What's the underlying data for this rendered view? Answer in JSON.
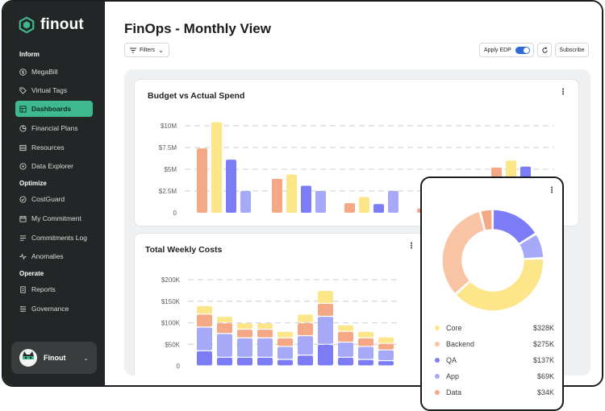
{
  "app": {
    "name": "finout"
  },
  "sidebar": {
    "sections": [
      {
        "label": "Inform",
        "items": [
          {
            "label": "MegaBill",
            "icon": "dollar-icon"
          },
          {
            "label": "Virtual Tags",
            "icon": "tag-icon"
          },
          {
            "label": "Dashboards",
            "icon": "dashboard-icon",
            "active": true
          },
          {
            "label": "Financial Plans",
            "icon": "pie-icon"
          },
          {
            "label": "Resources",
            "icon": "list-icon"
          },
          {
            "label": "Data Explorer",
            "icon": "explore-icon"
          }
        ]
      },
      {
        "label": "Optimize",
        "items": [
          {
            "label": "CostGuard",
            "icon": "check-circle-icon"
          },
          {
            "label": "My Commitment",
            "icon": "calendar-icon"
          },
          {
            "label": "Commitments Log",
            "icon": "log-icon"
          },
          {
            "label": "Anomalies",
            "icon": "pulse-icon"
          }
        ]
      },
      {
        "label": "Operate",
        "items": [
          {
            "label": "Reports",
            "icon": "report-icon"
          },
          {
            "label": "Governance",
            "icon": "governance-icon"
          }
        ]
      }
    ],
    "user": {
      "name": "Finout"
    }
  },
  "header": {
    "title": "FinOps - Monthly View",
    "filters_label": "Filters",
    "apply_edp_label": "Apply EDP",
    "apply_edp_on": true,
    "subscribe_label": "Subscribe"
  },
  "colors": {
    "core": "#fde68a",
    "backend": "#f9c4a4",
    "qa": "#7b7cf6",
    "app": "#a5a9f8",
    "data": "#f4a886",
    "accent": "#3db88f"
  },
  "chart_data": [
    {
      "type": "bar",
      "title": "Budget vs Actual Spend",
      "y_ticks": [
        "$10M",
        "$7.5M",
        "$5M",
        "$2.5M",
        "0"
      ],
      "ylim": [
        0,
        10
      ],
      "groups": [
        {
          "values": [
            7.4,
            10.4,
            6.1,
            2.5
          ],
          "colors": [
            "#f4a886",
            "#fde68a",
            "#7b7cf6",
            "#a5a9f8"
          ]
        },
        {
          "values": [
            3.9,
            4.4,
            3.1,
            2.5
          ],
          "colors": [
            "#f4a886",
            "#fde68a",
            "#7b7cf6",
            "#a5a9f8"
          ]
        },
        {
          "values": [
            1.1,
            1.8,
            1.0,
            2.5
          ],
          "colors": [
            "#f4a886",
            "#fde68a",
            "#7b7cf6",
            "#a5a9f8"
          ]
        },
        {
          "values": [
            0.5,
            0,
            0,
            0
          ],
          "colors": [
            "#f4a886",
            "#fde68a",
            "#7b7cf6",
            "#a5a9f8"
          ]
        },
        {
          "values": [
            5.2,
            6.0,
            5.3,
            2.5
          ],
          "colors": [
            "#f4a886",
            "#fde68a",
            "#7b7cf6",
            "#a5a9f8"
          ]
        }
      ]
    },
    {
      "type": "bar",
      "title": "Total Weekly Costs",
      "stacked": true,
      "y_ticks": [
        "$200K",
        "$150K",
        "$100K",
        "$50K",
        "0"
      ],
      "ylim": [
        0,
        200
      ],
      "series_colors": [
        "#7b7cf6",
        "#a5a9f8",
        "#f4a886",
        "#fde68a"
      ],
      "stacks": [
        [
          35,
          55,
          30,
          20
        ],
        [
          20,
          55,
          25,
          15
        ],
        [
          20,
          45,
          20,
          15
        ],
        [
          20,
          45,
          20,
          15
        ],
        [
          15,
          30,
          20,
          15
        ],
        [
          25,
          45,
          30,
          20
        ],
        [
          50,
          65,
          30,
          30
        ],
        [
          20,
          35,
          25,
          15
        ],
        [
          15,
          30,
          20,
          15
        ],
        [
          12,
          25,
          15,
          15
        ]
      ]
    },
    {
      "type": "pie",
      "donut": true,
      "labels": [
        "Core",
        "Backend",
        "QA",
        "App",
        "Data"
      ],
      "display_values": [
        "$328K",
        "$275K",
        "$137K",
        "$69K",
        "$34K"
      ],
      "values": [
        328,
        275,
        137,
        69,
        34
      ],
      "colors": [
        "#fde68a",
        "#f9c4a4",
        "#7b7cf6",
        "#a5a9f8",
        "#f4a886"
      ]
    }
  ]
}
